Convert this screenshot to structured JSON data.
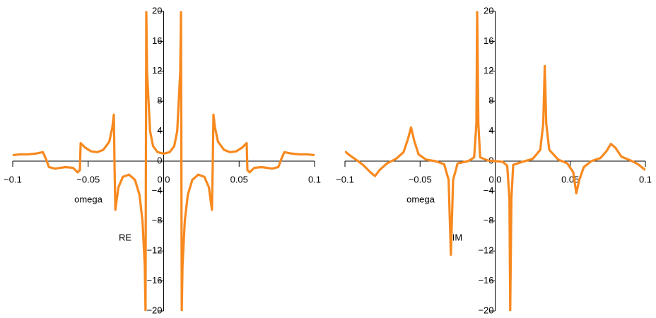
{
  "chart_data": [
    {
      "type": "line",
      "x_label": "omega",
      "y_label": "RE",
      "color": "#f7891f",
      "xlim": [
        -0.1,
        0.1
      ],
      "ylim": [
        -20,
        20
      ],
      "xticks": [
        {
          "value": -0.1,
          "label": "−0.1"
        },
        {
          "value": -0.05,
          "label": "−0.05"
        },
        {
          "value": 0,
          "label": "0.0"
        },
        0.05,
        0.1
      ],
      "yticks": [
        20,
        16,
        12,
        8,
        4,
        0,
        {
          "value": -4,
          "label": "−4"
        },
        {
          "value": -8,
          "label": "−8"
        },
        {
          "value": -12,
          "label": "−12"
        },
        {
          "value": -16,
          "label": "−16"
        },
        {
          "value": -20,
          "label": "−20"
        }
      ],
      "x": [
        -0.1,
        -0.095,
        -0.09,
        -0.085,
        -0.08,
        -0.078,
        -0.076,
        -0.072,
        -0.065,
        -0.06,
        -0.057,
        -0.0555,
        -0.055,
        -0.052,
        -0.048,
        -0.044,
        -0.04,
        -0.036,
        -0.034,
        -0.033,
        -0.0325,
        -0.032,
        -0.03,
        -0.027,
        -0.023,
        -0.019,
        -0.016,
        -0.014,
        -0.0125,
        -0.012,
        -0.0115,
        -0.011,
        -0.009,
        -0.007,
        -0.004,
        0,
        0.004,
        0.007,
        0.009,
        0.011,
        0.0115,
        0.012,
        0.0125,
        0.014,
        0.016,
        0.019,
        0.023,
        0.027,
        0.03,
        0.032,
        0.0325,
        0.033,
        0.034,
        0.036,
        0.04,
        0.044,
        0.048,
        0.052,
        0.055,
        0.0555,
        0.057,
        0.06,
        0.065,
        0.072,
        0.076,
        0.078,
        0.08,
        0.085,
        0.09,
        0.095,
        0.1
      ],
      "values": [
        0.8,
        0.9,
        0.9,
        1.0,
        1.2,
        0.3,
        -0.8,
        -1.0,
        -0.8,
        -0.9,
        -1.5,
        -1.2,
        2.4,
        1.8,
        1.3,
        1.2,
        1.5,
        2.6,
        4.5,
        6.2,
        -1,
        -6.5,
        -3.5,
        -2.1,
        -1.8,
        -2.5,
        -4.5,
        -8,
        -14,
        -20,
        20,
        12,
        4,
        2,
        1.2,
        1,
        1.2,
        2,
        4,
        12,
        20,
        -20,
        -14,
        -8,
        -4.5,
        -2.5,
        -1.8,
        -2.1,
        -3.5,
        -6.5,
        -1,
        6.2,
        4.5,
        2.6,
        1.5,
        1.2,
        1.3,
        1.8,
        2.4,
        -1.2,
        -1.5,
        -0.9,
        -0.8,
        -1.0,
        -0.8,
        0.3,
        1.2,
        1.0,
        0.9,
        0.9,
        0.8
      ]
    },
    {
      "type": "line",
      "x_label": "omega",
      "y_label": "IM",
      "color": "#f7891f",
      "xlim": [
        -0.1,
        0.1
      ],
      "ylim": [
        -20,
        20
      ],
      "xticks": [
        {
          "value": -0.1,
          "label": "−0.1"
        },
        {
          "value": -0.05,
          "label": "−0.05"
        },
        {
          "value": 0,
          "label": "0.0"
        },
        0.05,
        0.1
      ],
      "yticks": [
        20,
        16,
        12,
        8,
        4,
        0,
        {
          "value": -4,
          "label": "−4"
        },
        {
          "value": -8,
          "label": "−8"
        },
        {
          "value": -12,
          "label": "−12"
        },
        {
          "value": -16,
          "label": "−16"
        },
        {
          "value": -20,
          "label": "−20"
        }
      ],
      "x": [
        -0.1,
        -0.097,
        -0.092,
        -0.088,
        -0.083,
        -0.08,
        -0.077,
        -0.072,
        -0.066,
        -0.061,
        -0.058,
        -0.056,
        -0.054,
        -0.051,
        -0.046,
        -0.04,
        -0.034,
        -0.031,
        -0.0295,
        -0.028,
        -0.025,
        -0.018,
        -0.014,
        -0.0125,
        -0.012,
        -0.0112,
        -0.01,
        -0.005,
        0,
        0.005,
        0.008,
        0.0095,
        0.01,
        0.0108,
        0.012,
        0.018,
        0.025,
        0.03,
        0.032,
        0.033,
        0.034,
        0.036,
        0.042,
        0.048,
        0.052,
        0.054,
        0.056,
        0.059,
        0.064,
        0.07,
        0.074,
        0.077,
        0.08,
        0.084,
        0.09,
        0.095,
        0.1
      ],
      "values": [
        1.3,
        0.8,
        0.1,
        -0.5,
        -1.5,
        -2.0,
        -1.2,
        -0.3,
        0.3,
        1.2,
        3.0,
        4.5,
        2.8,
        0.9,
        0.2,
        0.0,
        -0.4,
        -2.5,
        -12.5,
        -2.5,
        -0.3,
        0.0,
        0.5,
        5,
        20,
        5,
        0.5,
        0.1,
        0,
        -0.1,
        -0.6,
        -5,
        -20,
        -5,
        -0.5,
        -0.1,
        0.3,
        1.5,
        5,
        12.7,
        5,
        1.5,
        0.2,
        -0.3,
        -1.5,
        -4.3,
        -2.5,
        -0.8,
        0,
        0.4,
        1.3,
        2.3,
        1.8,
        0.6,
        0.1,
        -0.4,
        -1.2
      ]
    }
  ]
}
